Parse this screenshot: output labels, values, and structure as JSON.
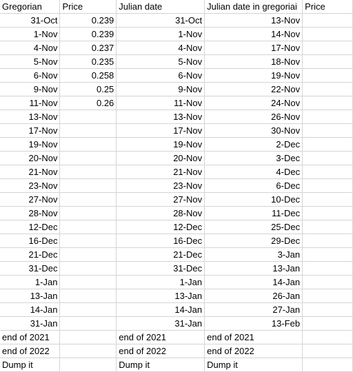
{
  "headers": [
    "Gregorian",
    "Price",
    "Julian date",
    "Julian date in gregoriai",
    "Price"
  ],
  "rows": [
    [
      "31-Oct",
      "0.239",
      "31-Oct",
      "13-Nov",
      ""
    ],
    [
      "1-Nov",
      "0.239",
      "1-Nov",
      "14-Nov",
      ""
    ],
    [
      "4-Nov",
      "0.237",
      "4-Nov",
      "17-Nov",
      ""
    ],
    [
      "5-Nov",
      "0.235",
      "5-Nov",
      "18-Nov",
      ""
    ],
    [
      "6-Nov",
      "0.258",
      "6-Nov",
      "19-Nov",
      ""
    ],
    [
      "9-Nov",
      "0.25",
      "9-Nov",
      "22-Nov",
      ""
    ],
    [
      "11-Nov",
      "0.26",
      "11-Nov",
      "24-Nov",
      ""
    ],
    [
      "13-Nov",
      "",
      "13-Nov",
      "26-Nov",
      ""
    ],
    [
      "17-Nov",
      "",
      "17-Nov",
      "30-Nov",
      ""
    ],
    [
      "19-Nov",
      "",
      "19-Nov",
      "2-Dec",
      ""
    ],
    [
      "20-Nov",
      "",
      "20-Nov",
      "3-Dec",
      ""
    ],
    [
      "21-Nov",
      "",
      "21-Nov",
      "4-Dec",
      ""
    ],
    [
      "23-Nov",
      "",
      "23-Nov",
      "6-Dec",
      ""
    ],
    [
      "27-Nov",
      "",
      "27-Nov",
      "10-Dec",
      ""
    ],
    [
      "28-Nov",
      "",
      "28-Nov",
      "11-Dec",
      ""
    ],
    [
      "12-Dec",
      "",
      "12-Dec",
      "25-Dec",
      ""
    ],
    [
      "16-Dec",
      "",
      "16-Dec",
      "29-Dec",
      ""
    ],
    [
      "21-Dec",
      "",
      "21-Dec",
      "3-Jan",
      ""
    ],
    [
      "31-Dec",
      "",
      "31-Dec",
      "13-Jan",
      ""
    ],
    [
      "1-Jan",
      "",
      "1-Jan",
      "14-Jan",
      ""
    ],
    [
      "13-Jan",
      "",
      "13-Jan",
      "26-Jan",
      ""
    ],
    [
      "14-Jan",
      "",
      "14-Jan",
      "27-Jan",
      ""
    ],
    [
      "31-Jan",
      "",
      "31-Jan",
      "13-Feb",
      ""
    ]
  ],
  "footer_rows": [
    [
      "end of 2021",
      "",
      "end of 2021",
      "end of 2021",
      ""
    ],
    [
      "end of 2022",
      "",
      "end of 2022",
      "end of 2022",
      ""
    ],
    [
      "Dump it",
      "",
      "Dump it",
      "Dump it",
      ""
    ]
  ]
}
